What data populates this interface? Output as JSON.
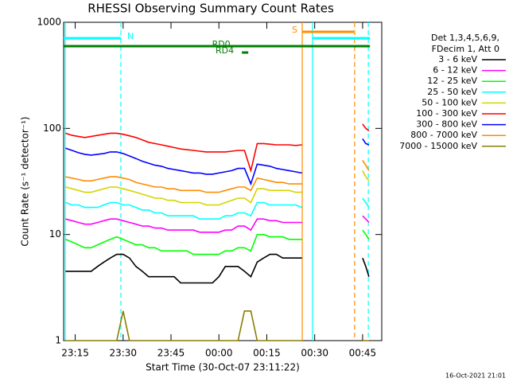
{
  "chart_data": {
    "type": "line",
    "title": "RHESSI Observing Summary Count Rates",
    "x_label": "Start Time (30-Oct-07 23:11:22)",
    "y_label": "Count Rate (s⁻¹ detector⁻¹)",
    "footer": "16-Oct-2021 21:01",
    "legend_header": [
      "Det 1,3,4,5,6,9,",
      "FDecim 1, Att 0"
    ],
    "log_y": true,
    "xlim": [
      11.37,
      111
    ],
    "ylim": [
      1,
      1000
    ],
    "xticks": [
      {
        "value": 15,
        "label": "23:15"
      },
      {
        "value": 30,
        "label": "23:30"
      },
      {
        "value": 45,
        "label": "23:45"
      },
      {
        "value": 60,
        "label": "00:00"
      },
      {
        "value": 75,
        "label": "00:15"
      },
      {
        "value": 90,
        "label": "00:30"
      },
      {
        "value": 105,
        "label": "00:45"
      }
    ],
    "yticks": [
      1,
      10,
      100,
      1000
    ],
    "x": [
      12,
      14,
      16,
      18,
      20,
      22,
      24,
      26,
      28,
      30,
      32,
      34,
      36,
      38,
      40,
      42,
      44,
      46,
      48,
      50,
      52,
      54,
      56,
      58,
      60,
      62,
      64,
      66,
      68,
      70,
      72,
      74,
      76,
      78,
      80,
      82,
      84,
      86,
      95,
      105,
      106,
      107
    ],
    "series": [
      {
        "name": "3 - 6 keV",
        "color": "#000000",
        "values": [
          4.5,
          4.5,
          4.5,
          4.5,
          4.5,
          5,
          5.5,
          6,
          6.5,
          6.5,
          6,
          5,
          4.5,
          4,
          4,
          4,
          4,
          4,
          3.5,
          3.5,
          3.5,
          3.5,
          3.5,
          3.5,
          4,
          5,
          5,
          5,
          4.5,
          4,
          5.5,
          6,
          6.5,
          6.5,
          6,
          6,
          6,
          6,
          null,
          6,
          5,
          4
        ]
      },
      {
        "name": "6 - 12 keV",
        "color": "#ff00ff",
        "values": [
          14,
          13.5,
          13,
          12.5,
          12.5,
          13,
          13.5,
          14,
          14,
          13.5,
          13,
          12.5,
          12,
          12,
          11.5,
          11.5,
          11,
          11,
          11,
          11,
          11,
          10.5,
          10.5,
          10.5,
          10.5,
          11,
          11,
          12,
          12,
          11,
          14,
          14,
          13.5,
          13.5,
          13,
          13,
          13,
          13,
          null,
          15,
          14,
          13
        ]
      },
      {
        "name": "12 - 25 keV",
        "color": "#00ff00",
        "values": [
          9,
          8.5,
          8,
          7.5,
          7.5,
          8,
          8.5,
          9,
          9.5,
          9,
          8.5,
          8,
          8,
          7.5,
          7.5,
          7,
          7,
          7,
          7,
          7,
          6.5,
          6.5,
          6.5,
          6.5,
          6.5,
          7,
          7,
          7.5,
          7.5,
          7,
          10,
          10,
          9.5,
          9.5,
          9.5,
          9,
          9,
          9,
          null,
          11,
          10,
          9
        ]
      },
      {
        "name": "25 - 50 keV",
        "color": "#00ffff",
        "values": [
          20,
          19,
          19,
          18,
          18,
          18,
          19,
          20,
          20,
          19,
          19,
          18,
          17,
          17,
          16,
          16,
          15,
          15,
          15,
          15,
          15,
          14,
          14,
          14,
          14,
          15,
          15,
          16,
          16,
          15,
          20,
          20,
          19,
          19,
          19,
          19,
          19,
          18,
          null,
          22,
          20,
          18
        ]
      },
      {
        "name": "50 - 100 keV",
        "color": "#d4d400",
        "values": [
          28,
          27,
          26,
          25,
          25,
          26,
          27,
          28,
          28,
          27,
          26,
          25,
          24,
          23,
          22,
          22,
          21,
          21,
          20,
          20,
          20,
          20,
          19,
          19,
          19,
          20,
          21,
          22,
          22,
          20,
          27,
          27,
          26,
          26,
          26,
          26,
          25,
          25,
          null,
          40,
          35,
          32
        ]
      },
      {
        "name": "100 - 300 keV",
        "color": "#ff0000",
        "values": [
          90,
          86,
          84,
          82,
          84,
          86,
          88,
          90,
          90,
          88,
          85,
          82,
          78,
          74,
          72,
          70,
          68,
          66,
          64,
          63,
          62,
          61,
          60,
          60,
          60,
          60,
          61,
          62,
          62,
          40,
          72,
          72,
          71,
          70,
          70,
          70,
          69,
          70,
          null,
          110,
          100,
          95
        ]
      },
      {
        "name": "300 - 800 keV",
        "color": "#0000ff",
        "values": [
          65,
          62,
          59,
          57,
          56,
          57,
          58,
          60,
          60,
          58,
          55,
          52,
          49,
          47,
          45,
          44,
          42,
          41,
          40,
          39,
          38,
          38,
          37,
          37,
          38,
          39,
          40,
          42,
          42,
          30,
          46,
          45,
          44,
          42,
          41,
          40,
          39,
          38,
          null,
          80,
          72,
          70
        ]
      },
      {
        "name": "800 - 7000 keV",
        "color": "#ff8c00",
        "values": [
          35,
          34,
          33,
          32,
          32,
          33,
          34,
          35,
          35,
          34,
          33,
          31,
          30,
          29,
          28,
          28,
          27,
          27,
          26,
          26,
          26,
          26,
          25,
          25,
          25,
          26,
          27,
          28,
          28,
          26,
          34,
          33,
          32,
          31,
          31,
          30,
          30,
          30,
          null,
          50,
          45,
          40
        ]
      },
      {
        "name": "7000 - 15000 keV",
        "color": "#8b7d00",
        "values": [
          1,
          1,
          1,
          1,
          1,
          1,
          1,
          1,
          1,
          1.9,
          1,
          1,
          1,
          1,
          1,
          1,
          1,
          1,
          1,
          1,
          1,
          1,
          1,
          1,
          1,
          1,
          1,
          1,
          1.9,
          1.9,
          1,
          1,
          1,
          1,
          1,
          1,
          1,
          1,
          null,
          1,
          1,
          1
        ]
      }
    ],
    "flags": [
      {
        "label": "N",
        "color": "#00ffff",
        "x": [
          11.37,
          29.3
        ]
      },
      {
        "label": "S",
        "color": "#ff8c00",
        "x": [
          86.1,
          102.3
        ]
      },
      {
        "label": "",
        "color": "#00ffff",
        "x": [
          89.3,
          107.3
        ]
      },
      {
        "label": "RD0",
        "color": "#008000",
        "x": [
          11.37,
          107.3
        ]
      },
      {
        "label": "RD4",
        "color": "#008000",
        "x": [
          67.2,
          69.2
        ]
      }
    ],
    "markers": [
      {
        "x": 11.87,
        "color": "#00ffff",
        "dashed": false
      },
      {
        "x": 29.3,
        "color": "#00ffff",
        "dashed": true
      },
      {
        "x": 86.1,
        "color": "#ff8c00",
        "dashed": false
      },
      {
        "x": 89.3,
        "color": "#00ffff",
        "dashed": false
      },
      {
        "x": 102.5,
        "color": "#ff8c00",
        "dashed": true
      },
      {
        "x": 106.8,
        "color": "#00ffff",
        "dashed": true
      }
    ]
  }
}
